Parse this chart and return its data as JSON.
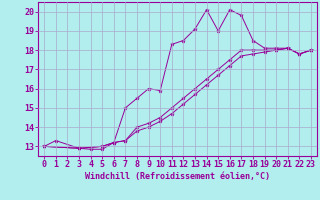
{
  "bg_color": "#b2eeee",
  "line_color": "#990099",
  "grid_color": "#aaaacc",
  "xlabel": "Windchill (Refroidissement éolien,°C)",
  "xlim": [
    -0.5,
    23.5
  ],
  "ylim": [
    12.5,
    20.5
  ],
  "yticks": [
    13,
    14,
    15,
    16,
    17,
    18,
    19,
    20
  ],
  "xticks": [
    0,
    1,
    2,
    3,
    4,
    5,
    6,
    7,
    8,
    9,
    10,
    11,
    12,
    13,
    14,
    15,
    16,
    17,
    18,
    19,
    20,
    21,
    22,
    23
  ],
  "line1_x": [
    0,
    1,
    3,
    4,
    5,
    6,
    7,
    8,
    9,
    10,
    11,
    12,
    13,
    14,
    15,
    16,
    17,
    18,
    19,
    20,
    21,
    22,
    23
  ],
  "line1_y": [
    13.0,
    13.3,
    12.9,
    12.85,
    12.85,
    13.2,
    15.0,
    15.5,
    16.0,
    15.9,
    18.3,
    18.5,
    19.1,
    20.1,
    19.0,
    20.1,
    19.8,
    18.5,
    18.1,
    18.1,
    18.1,
    17.8,
    18.0
  ],
  "line2_x": [
    0,
    3,
    5,
    6,
    7,
    8,
    9,
    10,
    11,
    12,
    13,
    14,
    15,
    16,
    17,
    18,
    19,
    20,
    21,
    22,
    23
  ],
  "line2_y": [
    13.0,
    12.9,
    13.0,
    13.2,
    13.3,
    14.0,
    14.2,
    14.5,
    15.0,
    15.5,
    16.0,
    16.5,
    17.0,
    17.5,
    18.0,
    18.0,
    18.0,
    18.0,
    18.1,
    17.8,
    18.0
  ],
  "line3_x": [
    0,
    3,
    5,
    6,
    7,
    8,
    9,
    10,
    11,
    12,
    13,
    14,
    15,
    16,
    17,
    18,
    19,
    20,
    21,
    22,
    23
  ],
  "line3_y": [
    13.0,
    12.9,
    13.0,
    13.2,
    13.3,
    13.8,
    14.0,
    14.3,
    14.7,
    15.2,
    15.7,
    16.2,
    16.7,
    17.2,
    17.7,
    17.8,
    17.9,
    18.0,
    18.1,
    17.8,
    18.0
  ],
  "tick_fontsize": 6,
  "xlabel_fontsize": 6
}
